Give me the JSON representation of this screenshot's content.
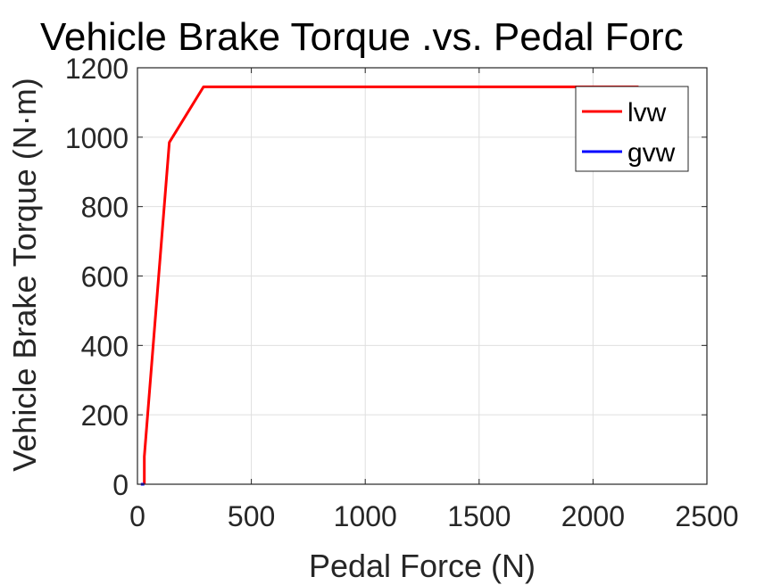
{
  "chart_data": {
    "type": "line",
    "title": "Vehicle Brake Torque .vs. Pedal Forc",
    "xlabel": "Pedal Force (N)",
    "ylabel": "Vehicle Brake Torque (N·m)",
    "xlim": [
      0,
      2500
    ],
    "ylim": [
      0,
      1200
    ],
    "xticks": [
      0,
      500,
      1000,
      1500,
      2000,
      2500
    ],
    "yticks": [
      0,
      200,
      400,
      600,
      800,
      1000,
      1200
    ],
    "xtick_labels": [
      "0",
      "500",
      "1000",
      "1500",
      "2000",
      "2500"
    ],
    "ytick_labels": [
      "0",
      "200",
      "400",
      "600",
      "800",
      "1000",
      "1200"
    ],
    "grid": true,
    "legend_position": "top-right",
    "series": [
      {
        "name": "lvw",
        "color": "#ff0000",
        "x": [
          30,
          30,
          140,
          290,
          2200
        ],
        "y": [
          0,
          80,
          985,
          1145,
          1145
        ]
      },
      {
        "name": "gvw",
        "color": "#0000ff",
        "x": [
          15,
          30
        ],
        "y": [
          0,
          0
        ]
      }
    ]
  }
}
